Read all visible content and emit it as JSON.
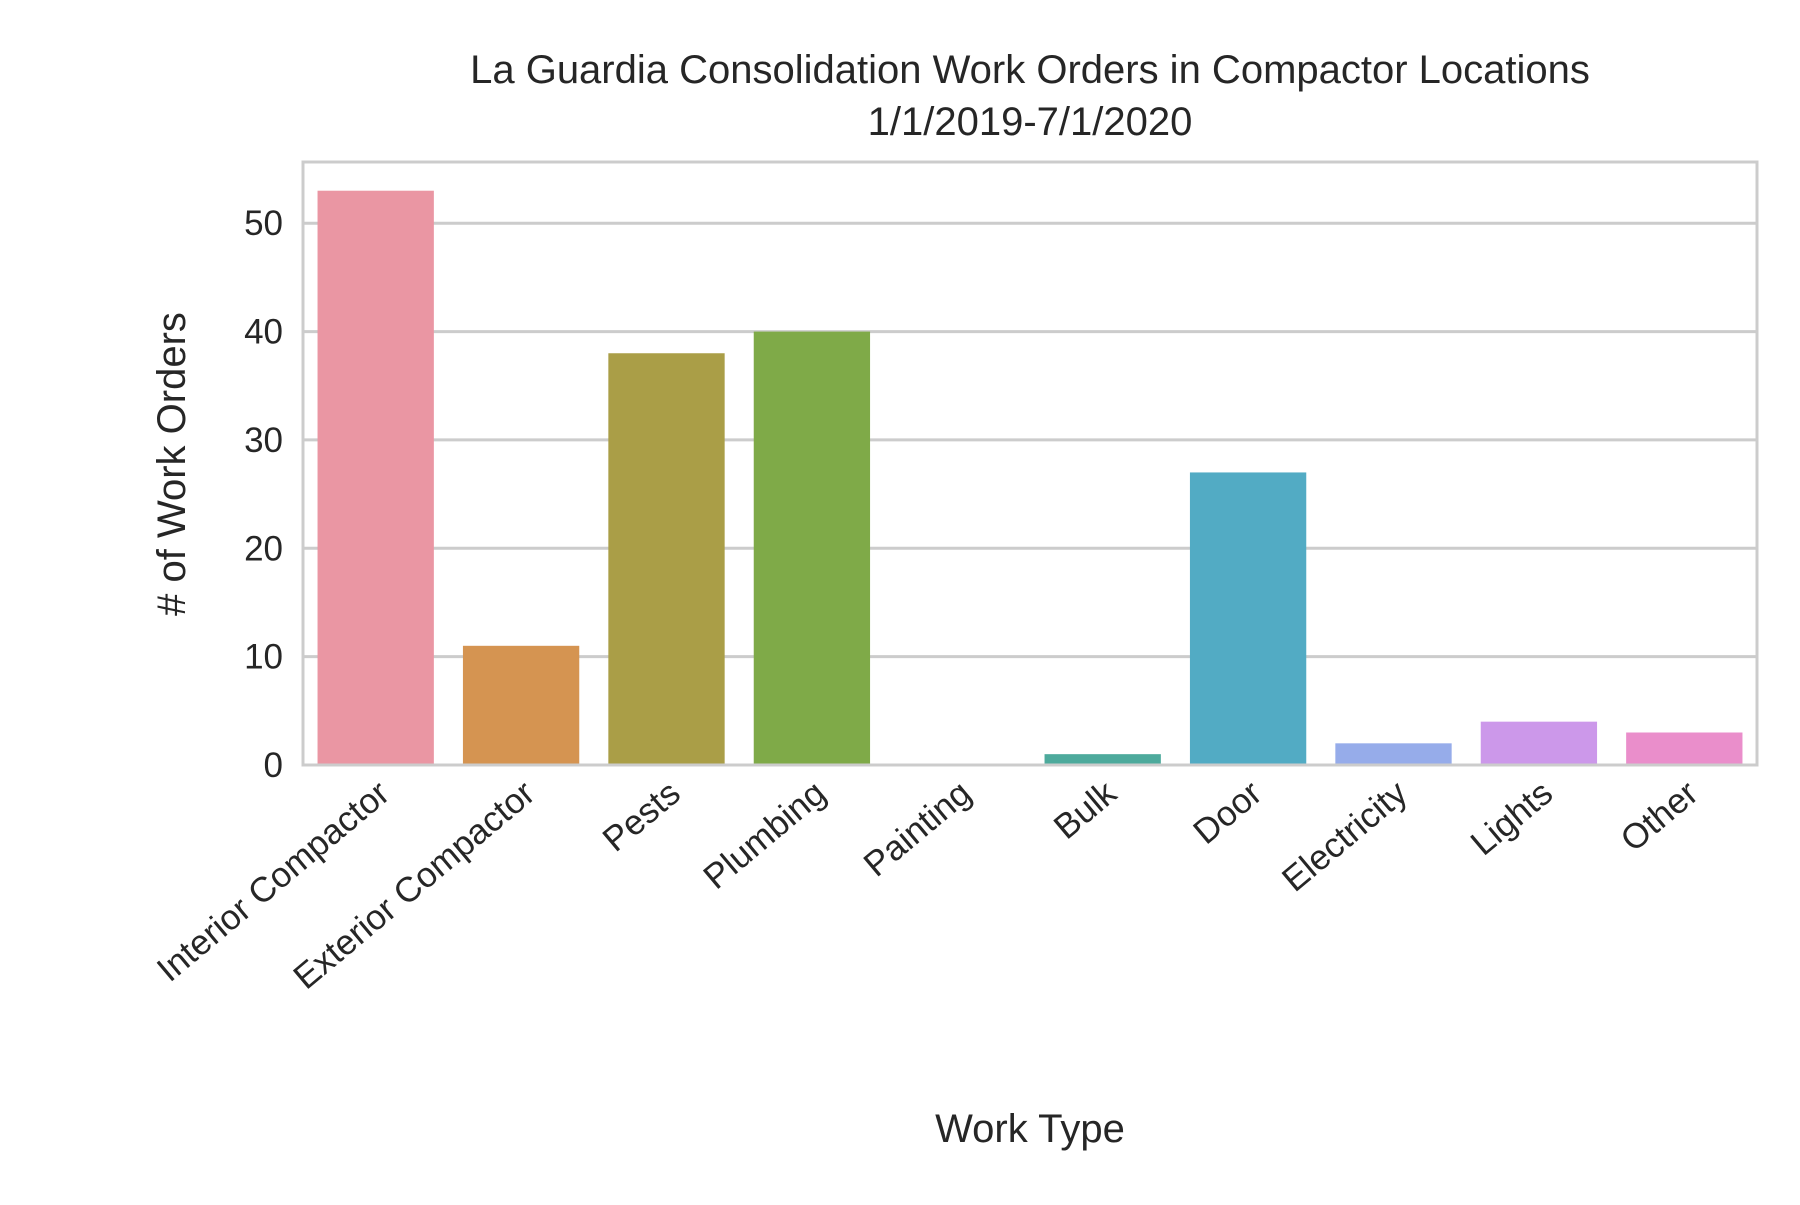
{
  "chart_data": {
    "type": "bar",
    "title": "La Guardia Consolidation Work Orders in Compactor Locations",
    "subtitle": "1/1/2019-7/1/2020",
    "xlabel": "Work Type",
    "ylabel": "# of Work Orders",
    "categories": [
      "Interior Compactor",
      "Exterior Compactor",
      "Pests",
      "Plumbing",
      "Painting",
      "Bulk",
      "Door",
      "Electricity",
      "Lights",
      "Other"
    ],
    "values": [
      53,
      11,
      38,
      40,
      0,
      1,
      27,
      2,
      4,
      3
    ],
    "colors": [
      "#ea96a3",
      "#d59451",
      "#aa9e47",
      "#7faa48",
      "#4fae8a",
      "#4daa9c",
      "#52abc4",
      "#96acea",
      "#cc98ea",
      "#ea8ecb"
    ],
    "ylim": [
      0,
      55.65
    ],
    "yticks": [
      0,
      10,
      20,
      30,
      40,
      50
    ],
    "grid": true,
    "legend": "none"
  }
}
